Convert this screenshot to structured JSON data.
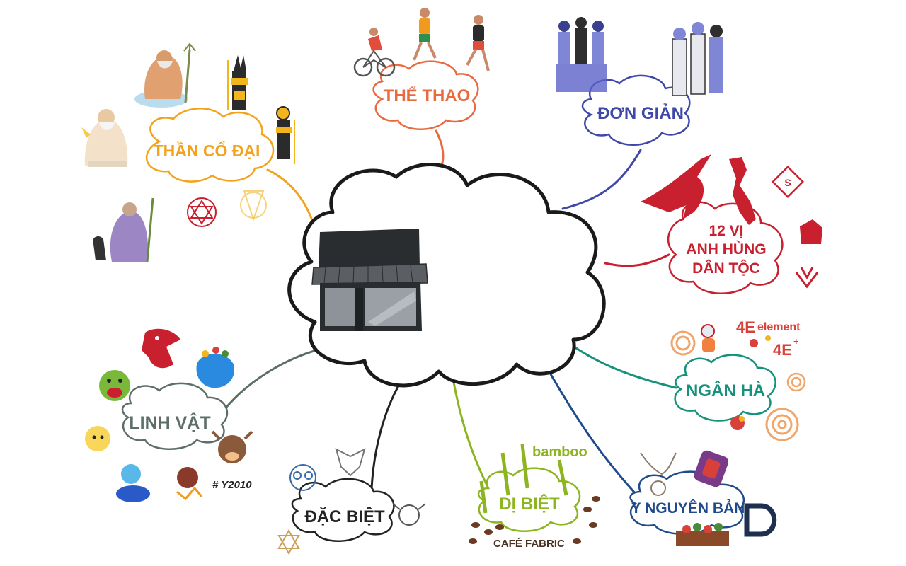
{
  "center": {
    "image": "storefront-icon"
  },
  "nodes": [
    {
      "id": "than-co-dai",
      "label": "THẦN CỔ ĐẠI",
      "color": "#f2a21b"
    },
    {
      "id": "the-thao",
      "label": "THỂ THAO",
      "color": "#ea6a3f"
    },
    {
      "id": "don-gian",
      "label": "ĐƠN GIẢN",
      "color": "#3f47a8"
    },
    {
      "id": "12-vi",
      "label_lines": [
        "12 VỊ",
        "ANH HÙNG",
        "DÂN TỘC"
      ],
      "color": "#c8202f"
    },
    {
      "id": "ngan-ha",
      "label": "NGÂN HÀ",
      "color": "#16917b"
    },
    {
      "id": "y-nguyen-ban",
      "label": "Y NGUYÊN BẢN",
      "color": "#1f4a8c"
    },
    {
      "id": "di-biet",
      "label": "DỊ BIỆT",
      "color": "#8cb51f"
    },
    {
      "id": "dac-biet",
      "label": "ĐẶC BIỆT",
      "color": "#222222"
    },
    {
      "id": "linh-vat",
      "label": "LINH VẬT",
      "color": "#5d6e6a"
    }
  ],
  "brand_texts": {
    "element": "element",
    "four_e": "4E",
    "four_e_plus": "4E",
    "plus": "+",
    "bamboo": "bamboo",
    "cafe_fabric": "CAFÉ FABRIC",
    "y2010": "# Y2010"
  },
  "illustrations": [
    "gods",
    "cyclist",
    "runners",
    "people-group",
    "horse-emblem",
    "vietnam-map",
    "galaxy-swirls",
    "bamboo",
    "coffee-beans",
    "mascots",
    "mandala-patterns"
  ]
}
